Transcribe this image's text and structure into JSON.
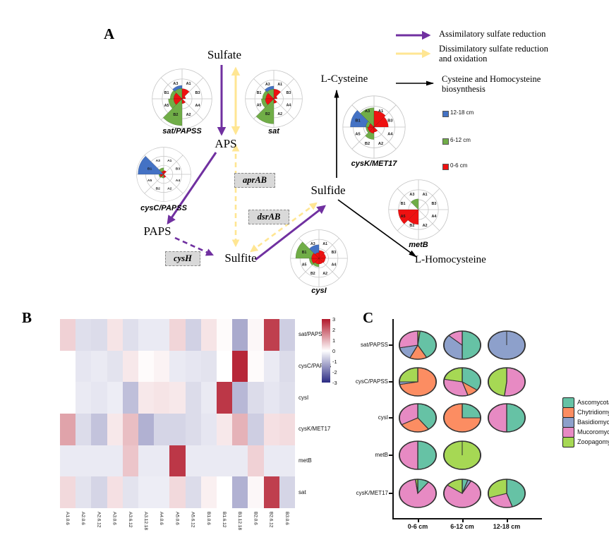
{
  "panelA": {
    "label": "A",
    "nodes": {
      "sulfate": "Sulfate",
      "aps": "APS",
      "paps": "PAPS",
      "sulfite": "Sulfite",
      "sulfide": "Sulfide",
      "lcysteine": "L-Cysteine",
      "lhomocysteine": "L-Homocysteine"
    },
    "genes": {
      "aprAB": "aprAB",
      "dsrAB": "dsrAB",
      "cysH": "cysH"
    },
    "arrow_legend": [
      {
        "label": "Assimilatory sulfate reduction",
        "color": "#7030A0",
        "style": "solid"
      },
      {
        "label": "Dissimilatory sulfate reduction and oxidation",
        "color": "#FFE693",
        "style": "solid"
      },
      {
        "label": "Cysteine and Homocysteine biosynthesis",
        "color": "#000000",
        "style": "solid"
      }
    ]
  },
  "panelB": {
    "label": "B"
  },
  "panelC": {
    "label": "C"
  },
  "chart_data": [
    {
      "type": "windrose-set",
      "sector_order": [
        "A1",
        "B3",
        "A4",
        "A2",
        "B2",
        "A5",
        "B1",
        "A3"
      ],
      "depths": [
        {
          "key": "blue",
          "label": "12-18 cm",
          "color": "#4472C4"
        },
        {
          "key": "green",
          "label": "6-12 cm",
          "color": "#70AD47"
        },
        {
          "key": "red",
          "label": "0-6 cm",
          "color": "#EE1111"
        }
      ],
      "charts": [
        {
          "key": "sat_papss",
          "label": "sat/PAPSS",
          "wedges": {
            "blue": [
              [
                "A3",
                0.45
              ]
            ],
            "green": [
              [
                "B2",
                0.9
              ],
              [
                "A5",
                0.46
              ],
              [
                "B1",
                0.4
              ],
              [
                "A3",
                0.35
              ],
              [
                "A2",
                0.16
              ]
            ],
            "red": [
              [
                "A1",
                0.34
              ],
              [
                "B1",
                0.28
              ],
              [
                "A5",
                0.28
              ],
              [
                "A2",
                0.16
              ],
              [
                "B3",
                0.12
              ]
            ]
          }
        },
        {
          "key": "sat",
          "label": "sat",
          "wedges": {
            "blue": [
              [
                "A3",
                0.45
              ]
            ],
            "green": [
              [
                "B2",
                0.88
              ],
              [
                "A5",
                0.44
              ],
              [
                "B1",
                0.4
              ],
              [
                "A3",
                0.34
              ],
              [
                "A2",
                0.15
              ]
            ],
            "red": [
              [
                "A1",
                0.34
              ],
              [
                "B1",
                0.28
              ],
              [
                "A5",
                0.3
              ],
              [
                "A2",
                0.16
              ],
              [
                "B3",
                0.12
              ]
            ]
          }
        },
        {
          "key": "cysc_papss",
          "label": "cysC/PAPSS",
          "wedges": {
            "blue": [
              [
                "B1",
                0.95
              ]
            ],
            "green": [
              [
                "A3",
                0.24
              ],
              [
                "A5",
                0.18
              ],
              [
                "B2",
                0.14
              ]
            ],
            "red": [
              [
                "A1",
                0.14
              ],
              [
                "A5",
                0.14
              ],
              [
                "A2",
                0.12
              ],
              [
                "A3",
                0.12
              ]
            ]
          }
        },
        {
          "key": "cysk_met17",
          "label": "cysK/MET17",
          "wedges": {
            "blue": [
              [
                "B1",
                0.76
              ]
            ],
            "green": [
              [
                "A3",
                0.62
              ],
              [
                "B2",
                0.4
              ],
              [
                "A5",
                0.26
              ],
              [
                "B1",
                0.26
              ],
              [
                "A1",
                0.2
              ]
            ],
            "red": [
              [
                "A1",
                0.52
              ],
              [
                "B3",
                0.46
              ],
              [
                "A5",
                0.2
              ],
              [
                "B2",
                0.2
              ],
              [
                "A2",
                0.16
              ],
              [
                "B1",
                0.16
              ]
            ]
          }
        },
        {
          "key": "metb",
          "label": "metB",
          "wedges": {
            "green": [
              [
                "A3",
                0.36
              ]
            ],
            "red": [
              [
                "A5",
                0.68
              ],
              [
                "B2",
                0.5
              ]
            ]
          }
        },
        {
          "key": "cysi",
          "label": "cysI",
          "wedges": {
            "blue": [
              [
                "A3",
                0.48
              ]
            ],
            "green": [
              [
                "B1",
                0.82
              ],
              [
                "A5",
                0.34
              ],
              [
                "B2",
                0.3
              ],
              [
                "A2",
                0.16
              ]
            ],
            "red": [
              [
                "A1",
                0.28
              ],
              [
                "B3",
                0.24
              ],
              [
                "A4",
                0.22
              ],
              [
                "A2",
                0.2
              ],
              [
                "B2",
                0.2
              ],
              [
                "A5",
                0.26
              ],
              [
                "B1",
                0.26
              ],
              [
                "A3",
                0.2
              ]
            ]
          }
        }
      ]
    },
    {
      "type": "heatmap",
      "columns": [
        "A1.0.6",
        "A2.0.6",
        "A2.6.12",
        "A3.0.6",
        "A3.6.12",
        "A3.12.18",
        "A4.0.6",
        "A5.0.6",
        "A5.6.12",
        "B1.0.6",
        "B1.6.12",
        "B1.12.18",
        "B2.0.6",
        "B2.6.12",
        "B3.0.6"
      ],
      "rows": [
        "sat/PAPSS",
        "cysC/PAPSS",
        "cysI",
        "cysK/MET17",
        "metB",
        "sat"
      ],
      "values": [
        [
          0.6,
          -0.45,
          -0.5,
          0.35,
          -0.45,
          -0.3,
          -0.3,
          0.55,
          -0.65,
          0.35,
          0.05,
          -1.2,
          0.1,
          2.5,
          -0.7
        ],
        [
          0.0,
          -0.35,
          -0.3,
          -0.4,
          0.3,
          0.05,
          0.15,
          -0.3,
          -0.35,
          -0.4,
          0.0,
          2.8,
          0.05,
          -0.3,
          -0.5
        ],
        [
          0.0,
          -0.3,
          -0.35,
          -0.25,
          -0.9,
          0.3,
          0.35,
          0.3,
          -0.5,
          -0.3,
          2.6,
          -1.0,
          -0.5,
          -0.35,
          -0.45
        ],
        [
          1.2,
          -0.5,
          -0.85,
          0.3,
          0.85,
          -1.1,
          -0.6,
          -0.6,
          -0.5,
          -0.35,
          0.3,
          1.0,
          -0.7,
          0.4,
          0.45
        ],
        [
          -0.3,
          -0.3,
          -0.3,
          -0.3,
          0.75,
          -0.3,
          -0.3,
          2.6,
          -0.3,
          -0.3,
          -0.3,
          -0.3,
          0.6,
          -0.3,
          -0.3
        ],
        [
          0.5,
          -0.4,
          -0.6,
          0.4,
          -0.4,
          -0.25,
          -0.25,
          0.5,
          -0.5,
          0.2,
          0.0,
          -1.1,
          0.1,
          2.5,
          -0.6
        ]
      ],
      "vmin": -3,
      "vmax": 3,
      "colorbar_ticks": [
        3,
        2,
        1,
        0,
        -1,
        -2,
        -3
      ],
      "color_positive": "#B2182B",
      "color_negative": "#2B2B83"
    },
    {
      "type": "pie-grid",
      "rows": [
        "sat/PAPSS",
        "cysC/PAPSS",
        "cysI",
        "metB",
        "cysK/MET17"
      ],
      "columns": [
        "0-6 cm",
        "6-12 cm",
        "12-18 cm"
      ],
      "legend": [
        {
          "label": "Ascomycota",
          "color": "#66C2A5"
        },
        {
          "label": "Chytridiomycota",
          "color": "#FC8D62"
        },
        {
          "label": "Basidiomycota",
          "color": "#8DA0CB"
        },
        {
          "label": "Mucoromycota",
          "color": "#E78AC3"
        },
        {
          "label": "Zoopagomycota",
          "color": "#A6D854"
        }
      ],
      "pies": [
        [
          [
            [
              "Zoopagomycota",
              0.02
            ],
            [
              "Ascomycota",
              0.4
            ],
            [
              "Chytridiomycota",
              0.15
            ],
            [
              "Basidiomycota",
              0.15
            ],
            [
              "Mucoromycota",
              0.28
            ]
          ],
          [
            [
              "Ascomycota",
              0.5
            ],
            [
              "Basidiomycota",
              0.37
            ],
            [
              "Mucoromycota",
              0.13
            ]
          ],
          [
            [
              "Basidiomycota",
              1.0
            ]
          ]
        ],
        [
          [
            [
              "Chytridiomycota",
              0.72
            ],
            [
              "Basidiomycota",
              0.03
            ],
            [
              "Zoopagomycota",
              0.25
            ]
          ],
          [
            [
              "Ascomycota",
              0.35
            ],
            [
              "Chytridiomycota",
              0.1
            ],
            [
              "Mucoromycota",
              0.33
            ],
            [
              "Zoopagomycota",
              0.22
            ]
          ],
          [
            [
              "Mucoromycota",
              0.52
            ],
            [
              "Zoopagomycota",
              0.48
            ]
          ]
        ],
        [
          [
            [
              "Ascomycota",
              0.4
            ],
            [
              "Chytridiomycota",
              0.27
            ],
            [
              "Mucoromycota",
              0.33
            ]
          ],
          [
            [
              "Ascomycota",
              0.25
            ],
            [
              "Chytridiomycota",
              0.75
            ]
          ],
          [
            [
              "Ascomycota",
              0.5
            ],
            [
              "Mucoromycota",
              0.5
            ]
          ]
        ],
        [
          [
            [
              "Ascomycota",
              0.5
            ],
            [
              "Mucoromycota",
              0.5
            ]
          ],
          [
            [
              "Zoopagomycota",
              1.0
            ]
          ],
          null
        ],
        [
          [
            [
              "Ascomycota",
              0.1
            ],
            [
              "Mucoromycota",
              0.88
            ],
            [
              "Zoopagomycota",
              0.02
            ]
          ],
          [
            [
              "Ascomycota",
              0.05
            ],
            [
              "Basidiomycota",
              0.03
            ],
            [
              "Mucoromycota",
              0.77
            ],
            [
              "Zoopagomycota",
              0.15
            ]
          ],
          [
            [
              "Ascomycota",
              0.45
            ],
            [
              "Mucoromycota",
              0.25
            ],
            [
              "Zoopagomycota",
              0.3
            ]
          ]
        ]
      ]
    }
  ]
}
